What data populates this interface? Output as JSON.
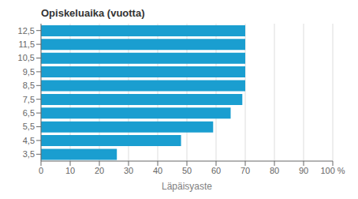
{
  "chart_data": {
    "type": "bar",
    "orientation": "horizontal",
    "title": "Opiskeluaika (vuotta)",
    "xlabel": "Läpäisyaste",
    "categories": [
      "3,5",
      "4,5",
      "5,5",
      "6,5",
      "7,5",
      "8,5",
      "9,5",
      "10,5",
      "11,5",
      "12,5"
    ],
    "values": [
      26,
      48,
      59,
      65,
      69,
      70,
      70,
      70,
      70,
      70
    ],
    "color": "#1a9ed0",
    "xlim": [
      0,
      100
    ],
    "xticks": [
      0,
      10,
      20,
      30,
      40,
      50,
      60,
      70,
      80,
      90,
      {
        "value": 100,
        "label": "100 %"
      }
    ],
    "grid": true
  }
}
